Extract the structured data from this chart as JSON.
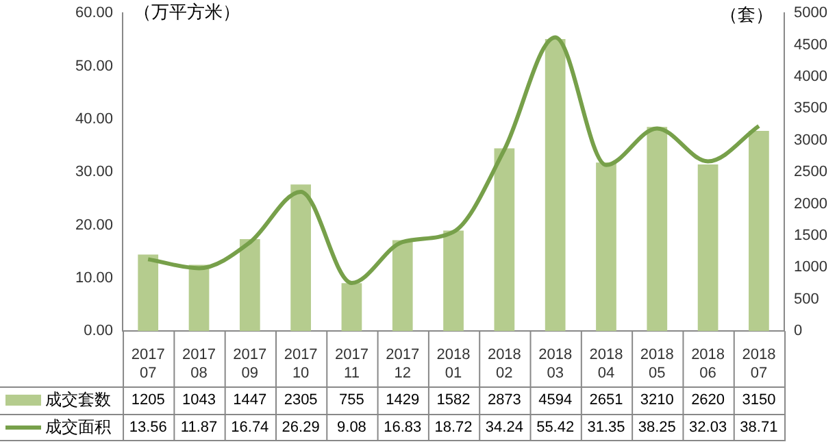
{
  "chart_data": {
    "type": "bar",
    "ylabel": "（万平方米）",
    "y2label": "（套）",
    "categories": [
      "2017 07",
      "2017 08",
      "2017 09",
      "2017 10",
      "2017 11",
      "2017 12",
      "2018 01",
      "2018 02",
      "2018 03",
      "2018 04",
      "2018 05",
      "2018 06",
      "2018 07"
    ],
    "series": [
      {
        "name": "成交套数",
        "axis": "y2",
        "color": "#b5cc8e",
        "values": [
          1205,
          1043,
          1447,
          2305,
          755,
          1429,
          1582,
          2873,
          4594,
          2651,
          3210,
          2620,
          3150
        ]
      },
      {
        "name": "成交面积",
        "type": "line",
        "axis": "y",
        "color": "#77a04a",
        "values": [
          13.56,
          11.87,
          16.74,
          26.29,
          9.08,
          16.83,
          18.72,
          34.24,
          55.42,
          31.35,
          38.25,
          32.03,
          38.71
        ]
      }
    ],
    "ylim": [
      0,
      60
    ],
    "yticks": [
      {
        "value": 0,
        "label": "0.00"
      },
      {
        "value": 10,
        "label": "10.00"
      },
      {
        "value": 20,
        "label": "20.00"
      },
      {
        "value": 30,
        "label": "30.00"
      },
      {
        "value": 40,
        "label": "40.00"
      },
      {
        "value": 50,
        "label": "50.00"
      },
      {
        "value": 60,
        "label": "60.00"
      }
    ],
    "y2lim": [
      0,
      5000
    ],
    "y2ticks": [
      0,
      500,
      1000,
      1500,
      2000,
      2500,
      3000,
      3500,
      4000,
      4500,
      5000
    ],
    "data_labels": true,
    "legend": "bottom",
    "grid": false,
    "marker": "none"
  }
}
